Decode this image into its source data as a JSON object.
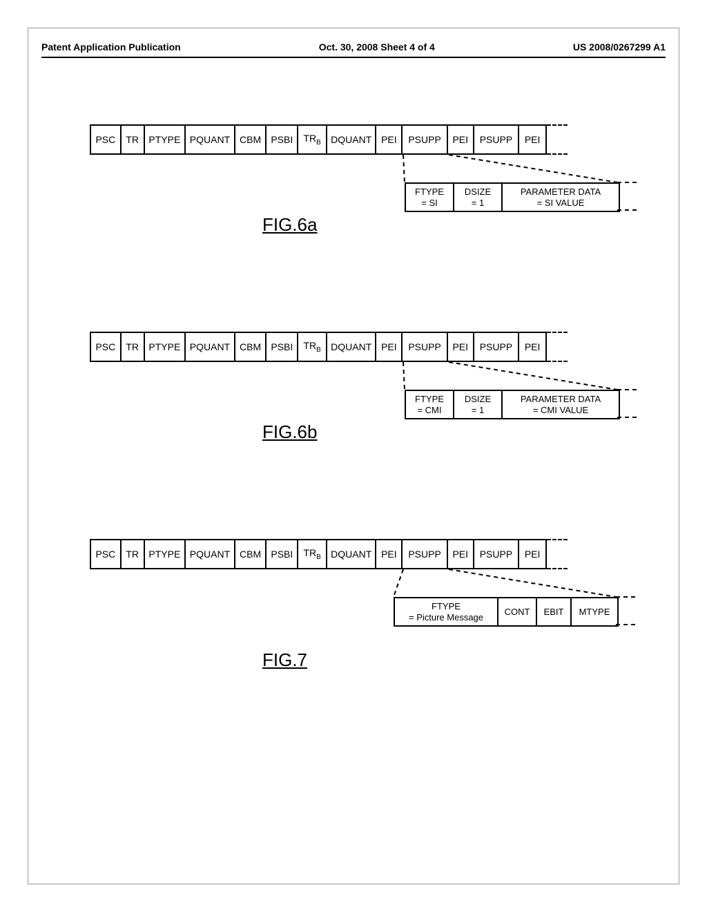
{
  "header": {
    "left": "Patent Application Publication",
    "center": "Oct. 30, 2008  Sheet 4 of 4",
    "right": "US 2008/0267299 A1"
  },
  "mainFields": {
    "f0": "PSC",
    "f1": "TR",
    "f2": "PTYPE",
    "f3": "PQUANT",
    "f4": "CBM",
    "f5": "PSBI",
    "f6_a": "TR",
    "f6_b": "B",
    "f7": "DQUANT",
    "f8": "PEI",
    "f9": "PSUPP",
    "f10": "PEI",
    "f11": "PSUPP",
    "f12": "PEI"
  },
  "fig6a": {
    "sub": {
      "c0_l1": "FTYPE",
      "c0_l2": "= SI",
      "c1_l1": "DSIZE",
      "c1_l2": "= 1",
      "c2_l1": "PARAMETER DATA",
      "c2_l2": "= SI VALUE"
    },
    "label": "FIG.6a"
  },
  "fig6b": {
    "sub": {
      "c0_l1": "FTYPE",
      "c0_l2": "= CMI",
      "c1_l1": "DSIZE",
      "c1_l2": "= 1",
      "c2_l1": "PARAMETER DATA",
      "c2_l2": "= CMI VALUE"
    },
    "label": "FIG.6b"
  },
  "fig7": {
    "sub": {
      "c0_l1": "FTYPE",
      "c0_l2": "= Picture Message",
      "c1": "CONT",
      "c2": "EBIT",
      "c3": "MTYPE"
    },
    "label": "FIG.7"
  },
  "geom": {
    "widths": {
      "w0": 44,
      "w1": 34,
      "w2": 60,
      "w3": 72,
      "w4": 46,
      "w5": 46,
      "w6": 42,
      "w7": 72,
      "w8": 38,
      "w9": 66,
      "w10": 38,
      "w11": 66,
      "w12": 38
    },
    "rightBound": 662,
    "subTop": 84,
    "fig6SubLeft": 456,
    "fig6SubWidths": {
      "c0": 70,
      "c1": 70,
      "c2": 168
    },
    "fig7SubLeft": 440,
    "fig7SubWidths": {
      "c0": 150,
      "c1": 56,
      "c2": 50,
      "c3": 66
    },
    "figLabelLeft": 250,
    "fig6LabelTop": 130,
    "fig7LabelTop": 160
  }
}
